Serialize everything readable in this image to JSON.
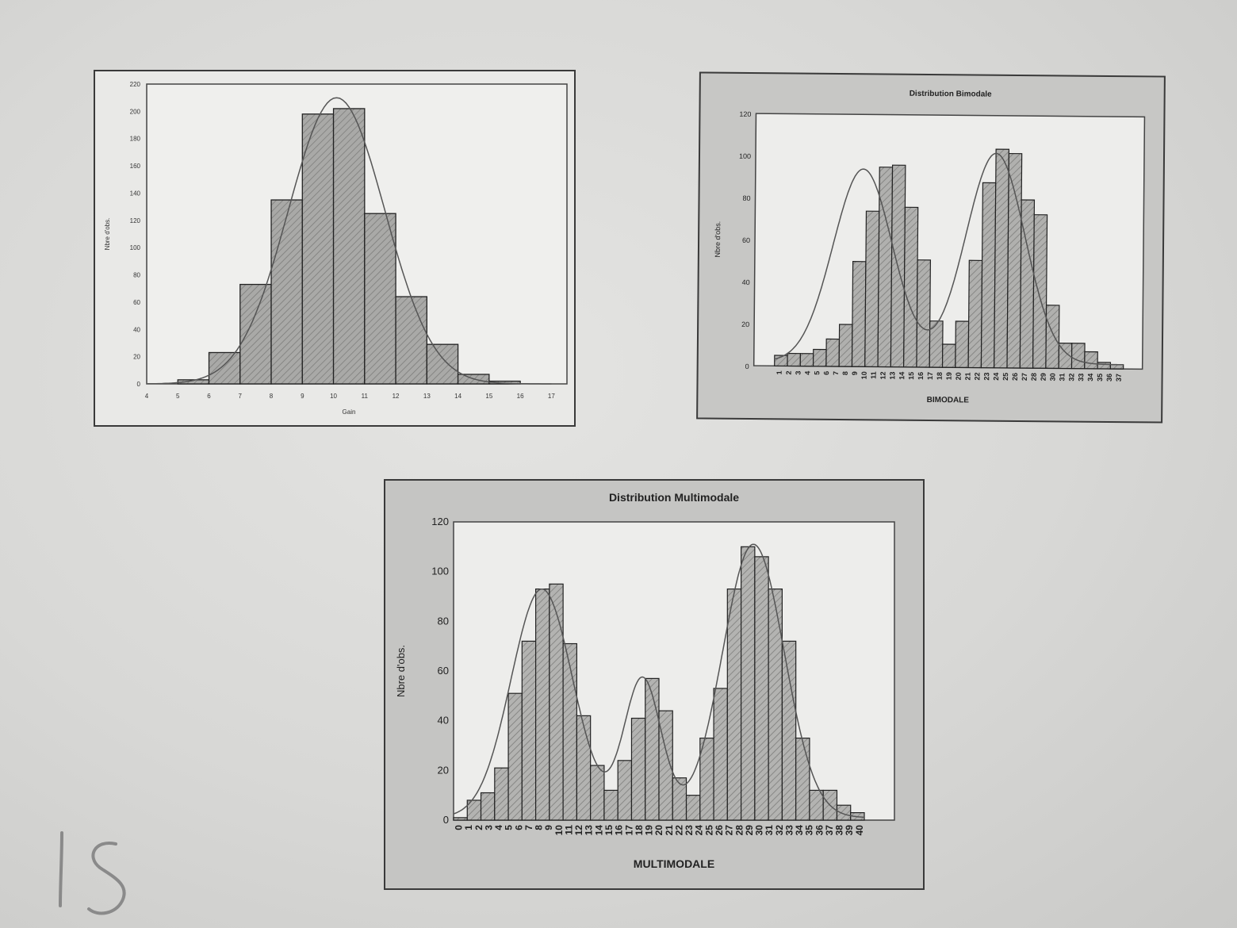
{
  "page": {
    "handwritten_page_number": "15"
  },
  "chart_data": [
    {
      "id": "normal",
      "type": "bar",
      "title": "",
      "xlabel": "Gain",
      "ylabel": "Nbre d'obs.",
      "x_ticks": [
        "4",
        "5",
        "6",
        "7",
        "8",
        "9",
        "10",
        "11",
        "12",
        "13",
        "14",
        "15",
        "16",
        "17"
      ],
      "y_ticks": [
        "0",
        "20",
        "40",
        "60",
        "80",
        "100",
        "120",
        "140",
        "160",
        "180",
        "200",
        "220"
      ],
      "ylim": [
        0,
        220
      ],
      "bins": [
        {
          "from": 4,
          "to": 5,
          "value": 0
        },
        {
          "from": 5,
          "to": 6,
          "value": 3
        },
        {
          "from": 6,
          "to": 7,
          "value": 23
        },
        {
          "from": 7,
          "to": 8,
          "value": 73
        },
        {
          "from": 8,
          "to": 9,
          "value": 135
        },
        {
          "from": 9,
          "to": 10,
          "value": 198
        },
        {
          "from": 10,
          "to": 11,
          "value": 202
        },
        {
          "from": 11,
          "to": 12,
          "value": 125
        },
        {
          "from": 12,
          "to": 13,
          "value": 64
        },
        {
          "from": 13,
          "to": 14,
          "value": 29
        },
        {
          "from": 14,
          "to": 15,
          "value": 7
        },
        {
          "from": 15,
          "to": 16,
          "value": 2
        },
        {
          "from": 16,
          "to": 17,
          "value": 0
        }
      ],
      "fit_curve": "normal",
      "bar_color": "#a9a9a7"
    },
    {
      "id": "bimodal",
      "type": "bar",
      "title": "Distribution Bimodale",
      "xlabel": "BIMODALE",
      "ylabel": "Nbre d'obs.",
      "y_ticks": [
        "0",
        "20",
        "40",
        "60",
        "80",
        "100",
        "120"
      ],
      "ylim": [
        0,
        120
      ],
      "x_ticks": [
        "1",
        "2",
        "3",
        "4",
        "5",
        "6",
        "7",
        "8",
        "9",
        "10",
        "11",
        "12",
        "13",
        "14",
        "15",
        "16",
        "17",
        "18",
        "19",
        "20",
        "21",
        "22",
        "23",
        "24",
        "25",
        "26",
        "27",
        "28",
        "29",
        "30",
        "31",
        "32",
        "33",
        "34",
        "35",
        "36",
        "37"
      ],
      "values": [
        5,
        6,
        6,
        8,
        13,
        20,
        50,
        74,
        95,
        96,
        76,
        51,
        22,
        11,
        22,
        51,
        88,
        104,
        102,
        80,
        73,
        30,
        12,
        12,
        8,
        3,
        2
      ],
      "fit_curve": "bimodal",
      "bar_color": "#b0b0ae"
    },
    {
      "id": "multimodal",
      "type": "bar",
      "title": "Distribution Multimodale",
      "xlabel": "MULTIMODALE",
      "ylabel": "Nbre d'obs.",
      "y_ticks": [
        "0",
        "20",
        "40",
        "60",
        "80",
        "100",
        "120"
      ],
      "ylim": [
        0,
        120
      ],
      "x_ticks": [
        "0",
        "1",
        "2",
        "3",
        "4",
        "5",
        "6",
        "7",
        "8",
        "9",
        "10",
        "11",
        "12",
        "13",
        "14",
        "15",
        "16",
        "17",
        "18",
        "19",
        "20",
        "21",
        "22",
        "23",
        "24",
        "25",
        "26",
        "27",
        "28",
        "29",
        "30",
        "31",
        "32",
        "33",
        "34",
        "35",
        "36",
        "37",
        "38",
        "39",
        "40"
      ],
      "values": [
        1,
        8,
        11,
        21,
        51,
        72,
        93,
        95,
        71,
        42,
        22,
        12,
        24,
        41,
        57,
        44,
        17,
        10,
        33,
        53,
        93,
        110,
        106,
        93,
        72,
        33,
        12,
        12,
        6,
        3
      ],
      "fit_curve": "trimodal",
      "bar_color": "#b3b3b1"
    }
  ]
}
